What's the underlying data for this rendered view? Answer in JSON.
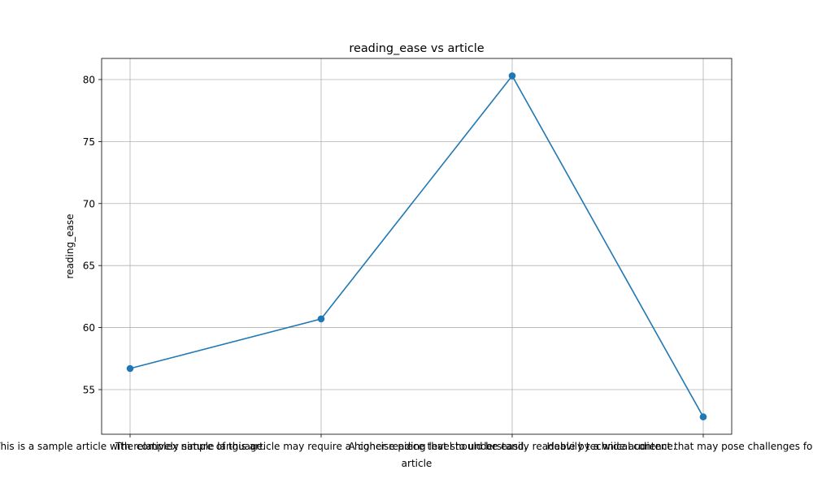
{
  "chart_data": {
    "type": "line",
    "title": "reading_ease vs article",
    "xlabel": "article",
    "ylabel": "reading_ease",
    "categories": [
      "This is a sample article with relatively simple language.",
      "The complex nature of this article may require a higher reading level to understand.",
      "A concise piece that should be easily readable by a wide audience.",
      "Heavily technical content that may pose challenges for readers."
    ],
    "series": [
      {
        "values": [
          56.7,
          60.7,
          80.3,
          52.8
        ],
        "color": "#1f77b4"
      }
    ],
    "yticks": [
      55,
      60,
      65,
      70,
      75,
      80
    ],
    "ylim": [
      51.4,
      81.7
    ],
    "grid": true,
    "marker": "circle"
  }
}
